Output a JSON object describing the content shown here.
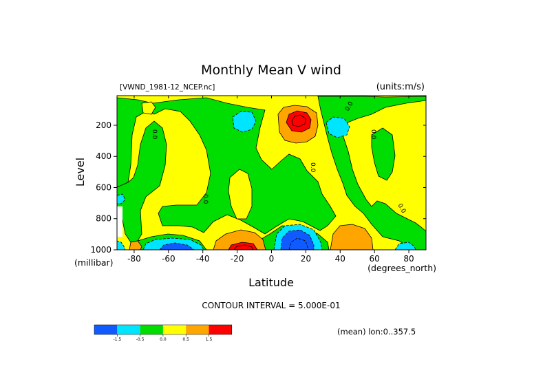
{
  "chart_data": {
    "type": "heatmap",
    "title": "Monthly Mean V wind",
    "file_label": "[VWND_1981-12_NCEP.nc]",
    "units_label": "(units:m/s)",
    "xlabel": "Latitude",
    "x_units": "(degrees_north)",
    "ylabel": "Level",
    "y_units": "(millibar)",
    "xlim": [
      -90,
      90
    ],
    "ylim": [
      1000,
      10
    ],
    "x_ticks": [
      -80,
      -60,
      -40,
      -20,
      0,
      20,
      40,
      60,
      80
    ],
    "x_tick_labels": [
      "-80",
      "-60",
      "-40",
      "-20",
      "0",
      "20",
      "40",
      "60",
      "80"
    ],
    "y_ticks": [
      200,
      400,
      600,
      800,
      1000
    ],
    "y_tick_labels": [
      "200",
      "400",
      "600",
      "800",
      "1000"
    ],
    "contour_interval_text": "CONTOUR INTERVAL = 5.000E-01",
    "mean_text": "(mean) lon:0..357.5",
    "legend": {
      "colors": [
        "#0f5bff",
        "#00e5ff",
        "#00dd00",
        "#ffff00",
        "#ffa500",
        "#ff0000"
      ],
      "labels": [
        "-1.5",
        "-0.5",
        "0.0",
        "0.5",
        "1.5"
      ]
    },
    "zero_contour_label": "0.0",
    "features": [
      {
        "lat": 15,
        "level": 160,
        "value": 2.0,
        "color": "#ff0000"
      },
      {
        "lat": -15,
        "level": 990,
        "value": 2.0,
        "color": "#ff0000"
      },
      {
        "lat": 14,
        "level": 950,
        "value": -2.0,
        "color": "#0f5bff"
      },
      {
        "lat": -58,
        "level": 980,
        "value": -1.6,
        "color": "#0f5bff"
      },
      {
        "lat": -24,
        "level": 175,
        "value": -0.8,
        "color": "#00e5ff"
      },
      {
        "lat": 41,
        "level": 200,
        "value": -0.8,
        "color": "#00e5ff"
      },
      {
        "lat": 82,
        "level": 985,
        "value": -0.7,
        "color": "#00e5ff"
      },
      {
        "lat": -75,
        "level": 1000,
        "value": -0.6,
        "color": "#00e5ff"
      },
      {
        "lat": 50,
        "level": 920,
        "value": 1.0,
        "color": "#ffa500"
      }
    ]
  }
}
